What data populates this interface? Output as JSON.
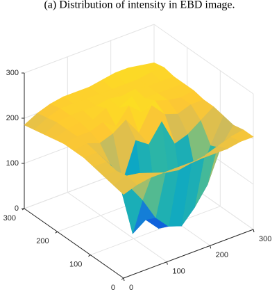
{
  "chart_data": {
    "type": "surface",
    "title": "(a) Distribution of intensity in EBD image.",
    "x": [
      0,
      30,
      60,
      90,
      120,
      150,
      180,
      210,
      240,
      270,
      300
    ],
    "y": [
      0,
      30,
      60,
      90,
      120,
      150,
      180,
      210,
      240,
      270,
      300
    ],
    "z": [
      [
        185,
        195,
        200,
        200,
        200,
        200,
        200,
        200,
        200,
        205,
        205
      ],
      [
        190,
        200,
        195,
        185,
        175,
        170,
        175,
        180,
        190,
        200,
        205
      ],
      [
        195,
        195,
        150,
        110,
        60,
        30,
        20,
        50,
        90,
        160,
        200
      ],
      [
        200,
        200,
        140,
        20,
        40,
        10,
        60,
        15,
        80,
        150,
        205
      ],
      [
        205,
        205,
        170,
        120,
        200,
        180,
        220,
        160,
        170,
        190,
        210
      ],
      [
        205,
        210,
        200,
        210,
        230,
        190,
        240,
        210,
        200,
        210,
        210
      ],
      [
        205,
        210,
        210,
        220,
        200,
        235,
        210,
        225,
        215,
        210,
        215
      ],
      [
        200,
        210,
        215,
        210,
        225,
        215,
        230,
        215,
        215,
        215,
        215
      ],
      [
        195,
        210,
        215,
        215,
        215,
        220,
        215,
        220,
        215,
        215,
        215
      ],
      [
        190,
        205,
        215,
        215,
        215,
        215,
        215,
        215,
        215,
        220,
        220
      ],
      [
        185,
        200,
        210,
        215,
        215,
        215,
        220,
        225,
        225,
        220,
        215
      ]
    ],
    "xlim": [
      0,
      300
    ],
    "ylim": [
      0,
      300
    ],
    "zlim": [
      0,
      300
    ],
    "xticks": [
      0,
      100,
      200,
      300
    ],
    "yticks": [
      0,
      100,
      200,
      300
    ],
    "zticks": [
      0,
      100,
      200,
      300
    ],
    "clim": [
      0,
      240
    ],
    "colormap": [
      "#352a87",
      "#0f5cdd",
      "#1481d6",
      "#06a4ca",
      "#2eb7a4",
      "#87bf77",
      "#d1bb59",
      "#fec832",
      "#f9fb0e"
    ],
    "grid": true
  }
}
